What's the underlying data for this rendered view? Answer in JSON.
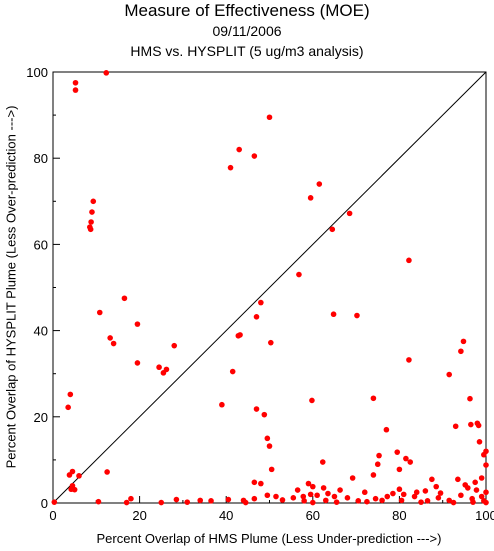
{
  "chart_data": {
    "type": "scatter",
    "title": "Measure of Effectiveness (MOE)",
    "date": "09/11/2006",
    "subtitle": "HMS vs. HYSPLIT  (5 ug/m3 analysis)",
    "xlabel": "Percent Overlap of HMS Plume (Less Under-prediction --->)",
    "ylabel": "Percent Overlap of HYSPLIT Plume (Less Over-prediction --->)",
    "xlim": [
      0,
      100
    ],
    "ylim": [
      0,
      100
    ],
    "xticks": [
      0,
      20,
      40,
      60,
      80,
      100
    ],
    "yticks": [
      0,
      20,
      40,
      60,
      80,
      100
    ],
    "grid": false,
    "reference_line": "y = x",
    "marker_color": "#ff0000",
    "points": [
      [
        5.2,
        97.5
      ],
      [
        5.2,
        95.8
      ],
      [
        12.3,
        99.8
      ],
      [
        50.0,
        89.5
      ],
      [
        43.0,
        82.0
      ],
      [
        46.5,
        80.5
      ],
      [
        41.0,
        77.8
      ],
      [
        61.5,
        74.0
      ],
      [
        59.5,
        70.8
      ],
      [
        9.3,
        70.0
      ],
      [
        9.0,
        67.5
      ],
      [
        68.5,
        67.2
      ],
      [
        8.8,
        65.2
      ],
      [
        8.5,
        64.0
      ],
      [
        8.7,
        63.5
      ],
      [
        64.5,
        63.5
      ],
      [
        82.2,
        56.3
      ],
      [
        56.8,
        53.0
      ],
      [
        16.5,
        47.5
      ],
      [
        48.0,
        46.5
      ],
      [
        10.8,
        44.2
      ],
      [
        64.8,
        43.8
      ],
      [
        70.2,
        43.5
      ],
      [
        47.0,
        43.2
      ],
      [
        19.5,
        41.5
      ],
      [
        43.2,
        39.0
      ],
      [
        42.8,
        38.8
      ],
      [
        13.2,
        38.3
      ],
      [
        94.8,
        37.5
      ],
      [
        14.0,
        37.0
      ],
      [
        50.3,
        37.2
      ],
      [
        28.0,
        36.5
      ],
      [
        94.2,
        35.2
      ],
      [
        82.2,
        33.2
      ],
      [
        19.5,
        32.5
      ],
      [
        24.5,
        31.5
      ],
      [
        26.2,
        31.0
      ],
      [
        25.5,
        30.2
      ],
      [
        41.5,
        30.5
      ],
      [
        91.5,
        29.8
      ],
      [
        4.0,
        25.2
      ],
      [
        74.0,
        24.3
      ],
      [
        96.3,
        24.2
      ],
      [
        59.8,
        23.8
      ],
      [
        39.0,
        22.8
      ],
      [
        3.5,
        22.2
      ],
      [
        47.0,
        21.8
      ],
      [
        48.8,
        20.5
      ],
      [
        98.0,
        18.5
      ],
      [
        96.5,
        18.2
      ],
      [
        98.3,
        18.0
      ],
      [
        93.0,
        17.8
      ],
      [
        77.0,
        17.0
      ],
      [
        49.5,
        15.0
      ],
      [
        98.5,
        14.2
      ],
      [
        50.0,
        13.2
      ],
      [
        100.0,
        12.0
      ],
      [
        79.5,
        11.8
      ],
      [
        99.5,
        11.2
      ],
      [
        75.3,
        11.0
      ],
      [
        81.5,
        10.3
      ],
      [
        82.5,
        9.5
      ],
      [
        62.3,
        9.5
      ],
      [
        75.0,
        9.0
      ],
      [
        100.0,
        8.8
      ],
      [
        80.0,
        7.8
      ],
      [
        12.5,
        7.2
      ],
      [
        4.5,
        7.3
      ],
      [
        50.5,
        7.8
      ],
      [
        74.0,
        6.5
      ],
      [
        3.8,
        6.5
      ],
      [
        6.0,
        6.3
      ],
      [
        69.2,
        5.8
      ],
      [
        87.5,
        5.5
      ],
      [
        93.5,
        5.5
      ],
      [
        99.0,
        5.8
      ],
      [
        97.5,
        4.8
      ],
      [
        46.5,
        4.8
      ],
      [
        48.0,
        4.5
      ],
      [
        4.5,
        4.0
      ],
      [
        95.2,
        4.2
      ],
      [
        59.0,
        4.5
      ],
      [
        60.0,
        3.8
      ],
      [
        62.5,
        3.5
      ],
      [
        88.5,
        3.8
      ],
      [
        4.2,
        3.2
      ],
      [
        56.5,
        3.0
      ],
      [
        66.3,
        3.0
      ],
      [
        80.0,
        3.2
      ],
      [
        95.8,
        3.5
      ],
      [
        97.8,
        3.0
      ],
      [
        72.0,
        2.5
      ],
      [
        78.5,
        2.2
      ],
      [
        84.0,
        2.5
      ],
      [
        86.0,
        2.8
      ],
      [
        100.0,
        2.5
      ],
      [
        59.5,
        2.0
      ],
      [
        63.5,
        2.2
      ],
      [
        49.5,
        1.8
      ],
      [
        51.5,
        1.5
      ],
      [
        55.5,
        1.2
      ],
      [
        57.8,
        1.5
      ],
      [
        61.0,
        1.8
      ],
      [
        65.0,
        1.5
      ],
      [
        68.0,
        1.2
      ],
      [
        74.5,
        1.0
      ],
      [
        77.2,
        1.5
      ],
      [
        83.5,
        1.5
      ],
      [
        89.0,
        1.2
      ],
      [
        94.2,
        1.8
      ],
      [
        96.8,
        1.0
      ],
      [
        99.0,
        1.5
      ],
      [
        18.0,
        1.0
      ],
      [
        28.5,
        0.8
      ],
      [
        34.0,
        0.6
      ],
      [
        36.5,
        0.5
      ],
      [
        40.5,
        0.8
      ],
      [
        44.0,
        0.6
      ],
      [
        46.5,
        1.0
      ],
      [
        53.0,
        0.7
      ],
      [
        58.0,
        0.5
      ],
      [
        63.0,
        0.6
      ],
      [
        70.5,
        0.5
      ],
      [
        76.0,
        0.6
      ],
      [
        80.5,
        0.6
      ],
      [
        86.5,
        0.5
      ],
      [
        91.5,
        0.6
      ],
      [
        99.5,
        0.5
      ],
      [
        0.3,
        0.2
      ],
      [
        10.5,
        0.3
      ],
      [
        17.0,
        0.1
      ],
      [
        25.0,
        0.1
      ],
      [
        31.0,
        0.2
      ],
      [
        44.5,
        0.1
      ],
      [
        60.0,
        0.1
      ],
      [
        65.5,
        0.2
      ],
      [
        72.5,
        0.3
      ],
      [
        85.0,
        0.2
      ],
      [
        92.5,
        0.1
      ],
      [
        97.0,
        0.2
      ],
      [
        100.0,
        0.1
      ],
      [
        5.0,
        3.1
      ],
      [
        81.0,
        2.0
      ],
      [
        89.5,
        2.3
      ]
    ]
  }
}
